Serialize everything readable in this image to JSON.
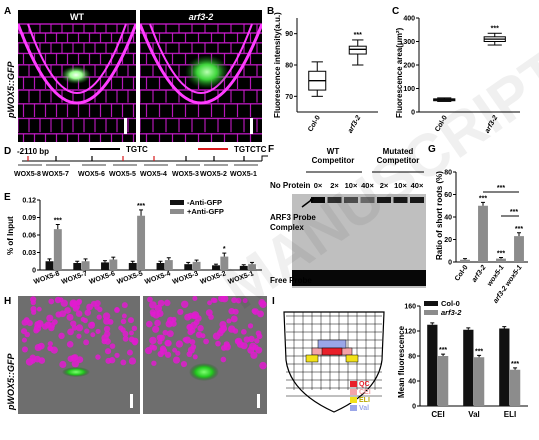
{
  "panels": {
    "A": {
      "letter": "A",
      "ylabel": "pWOX5::GFP",
      "left_title": "WT",
      "right_title": "arf3-2"
    },
    "B": {
      "letter": "B",
      "ylabel": "Fluorescence intensity(a.u.)",
      "sig": "***"
    },
    "C": {
      "letter": "C",
      "ylabel": "Fluorescence area(μm²)",
      "sig": "***"
    },
    "D": {
      "letter": "D",
      "start_label": "-2110 bp",
      "motif1": "TGTC",
      "motif2": "TGTCTC",
      "fragments": [
        "WOX5-8",
        "WOX5-7",
        "WOX5-6",
        "WOX5-5",
        "WOX5-4",
        "WOX5-3",
        "WOX5-2",
        "WOX5-1"
      ]
    },
    "E": {
      "letter": "E",
      "ylabel": "% of Input",
      "legend": [
        "-Anti-GFP",
        "+Anti-GFP"
      ],
      "sig": "***",
      "sig_small": "*"
    },
    "F": {
      "letter": "F",
      "wt_competitor": "WT\nCompetitor",
      "mut_competitor": "Mutated\nCompetitor",
      "no_protein": "No Protein",
      "lanes": [
        "0×",
        "2×",
        "10×",
        "40×",
        "2×",
        "10×",
        "40×"
      ],
      "complex_label": "ARF3 Probe\nComplex",
      "free_probe": "Free Probe"
    },
    "G": {
      "letter": "G",
      "ylabel": "Ratio of short roots (%)",
      "sig": "***"
    },
    "H": {
      "letter": "H",
      "ylabel": "pWOX5::GFP"
    },
    "I": {
      "letter": "I",
      "ylabel": "Mean fluorescence",
      "legend": [
        "Col-0",
        "arf3-2"
      ],
      "sig": "***",
      "key": [
        {
          "label": "QC",
          "color": "#e8202a"
        },
        {
          "label": "CEI",
          "color": "#f4a3a8"
        },
        {
          "label": "ELI",
          "color": "#f2e21a"
        },
        {
          "label": "Val",
          "color": "#9aa6e8"
        }
      ]
    }
  },
  "chart_data": [
    {
      "id": "B",
      "type": "box",
      "categories": [
        "Col-0",
        "arf3-2"
      ],
      "boxes": [
        {
          "min": 70,
          "q1": 72,
          "median": 75,
          "q3": 78,
          "max": 81
        },
        {
          "min": 80,
          "q1": 83.5,
          "median": 85,
          "q3": 86,
          "max": 88
        }
      ],
      "ylim": [
        65,
        95
      ],
      "yticks": [
        70,
        80,
        90
      ],
      "ylabel": "Fluorescence intensity(a.u.)"
    },
    {
      "id": "C",
      "type": "box",
      "categories": [
        "Col-0",
        "arf3-2"
      ],
      "boxes": [
        {
          "min": 45,
          "q1": 48,
          "median": 52,
          "q3": 56,
          "max": 60
        },
        {
          "min": 285,
          "q1": 300,
          "median": 310,
          "q3": 320,
          "max": 335
        }
      ],
      "ylim": [
        0,
        400
      ],
      "yticks": [
        0,
        100,
        200,
        300,
        400
      ],
      "ylabel": "Fluorescence area(μm²)"
    },
    {
      "id": "E",
      "type": "bar",
      "categories": [
        "WOX5-8",
        "WOX5-7",
        "WOX5-6",
        "WOX5-5",
        "WOX5-4",
        "WOX5-3",
        "WOX5-2",
        "WOX5-1"
      ],
      "series": [
        {
          "name": "-Anti-GFP",
          "values": [
            0.015,
            0.012,
            0.013,
            0.012,
            0.012,
            0.01,
            0.008,
            0.007
          ],
          "errors": [
            0.004,
            0.003,
            0.003,
            0.003,
            0.003,
            0.003,
            0.002,
            0.002
          ]
        },
        {
          "name": "+Anti-GFP",
          "values": [
            0.07,
            0.015,
            0.018,
            0.093,
            0.017,
            0.014,
            0.023,
            0.01
          ],
          "errors": [
            0.008,
            0.004,
            0.004,
            0.01,
            0.004,
            0.003,
            0.006,
            0.003
          ]
        }
      ],
      "ylim": [
        0,
        0.12
      ],
      "yticks": [
        0,
        0.03,
        0.06,
        0.09,
        0.12
      ],
      "ylabel": "% of Input"
    },
    {
      "id": "G",
      "type": "bar",
      "categories": [
        "Col-0",
        "arf3-2",
        "wox5-1",
        "arf3-2 wox5-1"
      ],
      "values": [
        2,
        50,
        3,
        23
      ],
      "errors": [
        1,
        3,
        1,
        3
      ],
      "ylim": [
        0,
        80
      ],
      "yticks": [
        0,
        20,
        40,
        60,
        80
      ],
      "ylabel": "Ratio of short roots (%)"
    },
    {
      "id": "I",
      "type": "bar",
      "categories": [
        "CEI",
        "Val",
        "ELI"
      ],
      "series": [
        {
          "name": "Col-0",
          "values": [
            130,
            122,
            124
          ],
          "errors": [
            3,
            3,
            3
          ]
        },
        {
          "name": "arf3-2",
          "values": [
            80,
            78,
            58
          ],
          "errors": [
            3,
            3,
            3
          ]
        }
      ],
      "ylim": [
        0,
        160
      ],
      "yticks": [
        0,
        40,
        80,
        120,
        160
      ],
      "ylabel": "Mean fluorescence"
    }
  ]
}
